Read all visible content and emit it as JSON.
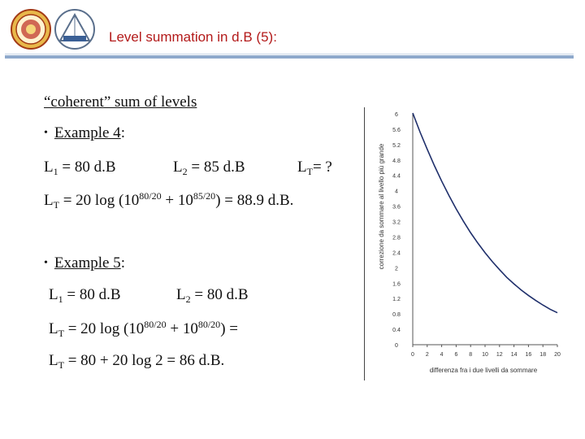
{
  "header": {
    "title": "Level summation in d.B (5):"
  },
  "body": {
    "heading": "“coherent” sum of levels",
    "example4": {
      "label": "Example 4",
      "colon": ":",
      "l1_sym": "L",
      "l1_sub": "1",
      "l1_val": " = 80 d.B",
      "l2_sym": "L",
      "l2_sub": "2",
      "l2_val": " = 85 d.B",
      "lt_sym": "L",
      "lt_sub": "T",
      "lt_val": "= ?",
      "f_sym": "L",
      "f_sub": "T",
      "f_a": " = 20 log (10",
      "f_e1": "80/20",
      "f_b": " + 10",
      "f_e2": "85/20",
      "f_c": ") = 88.9 d.B."
    },
    "example5": {
      "label": "Example 5",
      "colon": ":",
      "l1_sym": "L",
      "l1_sub": "1",
      "l1_val": " = 80 d.B",
      "l2_sym": "L",
      "l2_sub": "2",
      "l2_val": " = 80 d.B",
      "f1_sym": "L",
      "f1_sub": "T",
      "f1_a": " = 20 log (10",
      "f1_e1": "80/20",
      "f1_b": " + 10",
      "f1_e2": "80/20",
      "f1_c": ") =",
      "f2_sym": "L",
      "f2_sub": "T",
      "f2_a": " = 80 + 20 log 2 = 86 d.B."
    }
  },
  "chart_data": {
    "type": "line",
    "ylabel": "correzione da sommare al livello più grande",
    "xlabel": "differenza fra i due livelli da sommare",
    "xlim": [
      0,
      20
    ],
    "ylim": [
      0,
      6
    ],
    "x_ticks": [
      "0",
      "2",
      "4",
      "6",
      "8",
      "10",
      "12",
      "14",
      "16",
      "18",
      "20"
    ],
    "y_ticks": [
      "0",
      "0.4",
      "0.8",
      "1.2",
      "1.6",
      "2",
      "2.4",
      "2.8",
      "3.2",
      "3.6",
      "4",
      "4.4",
      "4.8",
      "5.2",
      "5.6",
      "6"
    ],
    "series": [
      {
        "x": [
          0,
          1,
          2,
          3,
          4,
          5,
          6,
          7,
          8,
          9,
          10,
          11,
          12,
          13,
          14,
          15,
          16,
          17,
          18,
          19,
          20
        ],
        "values": [
          6.02,
          5.53,
          5.08,
          4.65,
          4.25,
          3.88,
          3.53,
          3.21,
          2.91,
          2.64,
          2.39,
          2.16,
          1.95,
          1.75,
          1.58,
          1.42,
          1.28,
          1.15,
          1.03,
          0.92,
          0.83
        ],
        "color": "#1f2f6b"
      }
    ]
  },
  "colors": {
    "title": "#b31a1a",
    "rule": "#8fa9cc",
    "curve": "#1f2f6b"
  }
}
